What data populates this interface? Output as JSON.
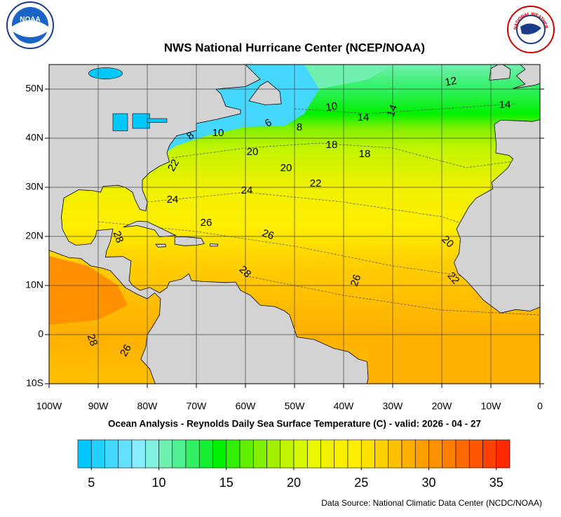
{
  "header": {
    "title": "NWS National Hurricane Center (NCEP/NOAA)",
    "noaa_logo": "NOAA",
    "nws_logo": "NATIONAL WEATHER SERVICE"
  },
  "map": {
    "xlim": [
      -100,
      0
    ],
    "ylim": [
      -10,
      55
    ],
    "xticks": [
      {
        "value": -100,
        "label": "100W"
      },
      {
        "value": -90,
        "label": "90W"
      },
      {
        "value": -80,
        "label": "80W"
      },
      {
        "value": -70,
        "label": "70W"
      },
      {
        "value": -60,
        "label": "60W"
      },
      {
        "value": -50,
        "label": "50W"
      },
      {
        "value": -40,
        "label": "40W"
      },
      {
        "value": -30,
        "label": "30W"
      },
      {
        "value": -20,
        "label": "20W"
      },
      {
        "value": -10,
        "label": "10W"
      },
      0
    ],
    "yticks": [
      {
        "value": -10,
        "label": "10S"
      },
      0,
      {
        "value": 10,
        "label": "10N"
      },
      {
        "value": 20,
        "label": "20N"
      },
      {
        "value": 30,
        "label": "30N"
      },
      {
        "value": 40,
        "label": "40N"
      },
      {
        "value": 50,
        "label": "50N"
      }
    ],
    "grid": true,
    "contour_labels": [
      12,
      10,
      14,
      14,
      14,
      8,
      10,
      6,
      8,
      18,
      18,
      20,
      22,
      20,
      22,
      24,
      24,
      26,
      26,
      28,
      20,
      28,
      26,
      22,
      28,
      26
    ]
  },
  "caption": "Ocean Analysis - Reynolds Daily Sea Surface Temperature (C) - valid: 2026 - 04 - 27",
  "colorbar": {
    "range": [
      4,
      36
    ],
    "ticks": [
      5,
      10,
      15,
      20,
      25,
      30,
      35
    ],
    "colors": [
      "#00c8ff",
      "#22d0ff",
      "#44d8ff",
      "#66e0ff",
      "#88eeff",
      "#80f0e0",
      "#70f0b0",
      "#50f090",
      "#30f060",
      "#10f030",
      "#00f000",
      "#30f000",
      "#60f000",
      "#80f000",
      "#a0f000",
      "#c0f400",
      "#d8f800",
      "#e8f800",
      "#f0f000",
      "#f8f000",
      "#ffee00",
      "#ffe000",
      "#ffd000",
      "#ffc000",
      "#ffb000",
      "#ffa000",
      "#ff9000",
      "#ff8000",
      "#ff6a00",
      "#ff5500",
      "#ff4000",
      "#ff2a00"
    ]
  },
  "source": "Data Source: National Climatic Data Center (NCDC/NOAA)"
}
